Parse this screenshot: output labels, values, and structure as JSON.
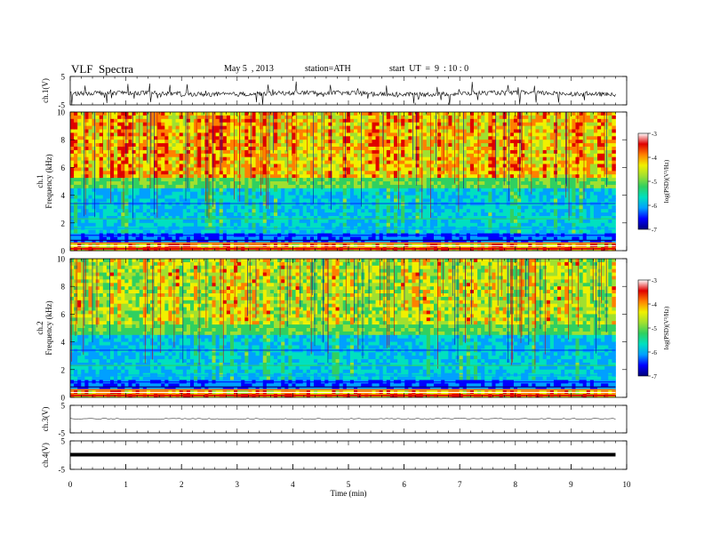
{
  "header": {
    "title": "VLF  Spectra",
    "date": "May 5  , 2013",
    "station": "station=ATH",
    "start": "start  UT  =  9  : 10 : 0"
  },
  "colors": {
    "colormap": [
      "#00007a",
      "#0000ff",
      "#00a0ff",
      "#00e0c0",
      "#30d060",
      "#a0e030",
      "#f0f000",
      "#ff8000",
      "#e00000",
      "#ffffff"
    ],
    "waveform": "#000000"
  },
  "chart_data": [
    {
      "type": "line",
      "name": "ch1-waveform",
      "ylabel": "ch.1(V)",
      "yticks": [
        "5",
        "-5"
      ],
      "ylim": [
        -5,
        5
      ],
      "note_level": 0.35
    },
    {
      "type": "heatmap",
      "name": "ch1-spectrogram",
      "ylabel_top": "ch.1",
      "ylabel": "Frequency (kHz)",
      "yticks": [
        "0",
        "2",
        "4",
        "6",
        "8",
        "10"
      ],
      "ylim": [
        0,
        10
      ],
      "colorbar": {
        "label": "log(PSD)(V²/Hz)",
        "ticks": [
          "-3",
          "-4",
          "-5",
          "-6",
          "-7"
        ],
        "range": [
          -7,
          -3
        ]
      }
    },
    {
      "type": "heatmap",
      "name": "ch2-spectrogram",
      "ylabel_top": "ch.2",
      "ylabel": "Frequency (kHz)",
      "yticks": [
        "0",
        "2",
        "4",
        "6",
        "8",
        "10"
      ],
      "ylim": [
        0,
        10
      ],
      "colorbar": {
        "label": "log(PSD)(V²/Hz)",
        "ticks": [
          "-3",
          "-4",
          "-5",
          "-6",
          "-7"
        ],
        "range": [
          -7,
          -3
        ]
      }
    },
    {
      "type": "line",
      "name": "ch3-waveform",
      "ylabel": "ch.3(V)",
      "yticks": [
        "5",
        "-5"
      ],
      "ylim": [
        -5,
        5
      ]
    },
    {
      "type": "line",
      "name": "ch4-waveform",
      "ylabel": "ch.4(V)",
      "yticks": [
        "5",
        "-5"
      ],
      "ylim": [
        -5,
        5
      ]
    }
  ],
  "xaxis": {
    "label": "Time  (min)",
    "ticks": [
      "0",
      "1",
      "2",
      "3",
      "4",
      "5",
      "6",
      "7",
      "8",
      "9",
      "10"
    ],
    "xlim": [
      0,
      10
    ],
    "data_end": 9.8
  }
}
